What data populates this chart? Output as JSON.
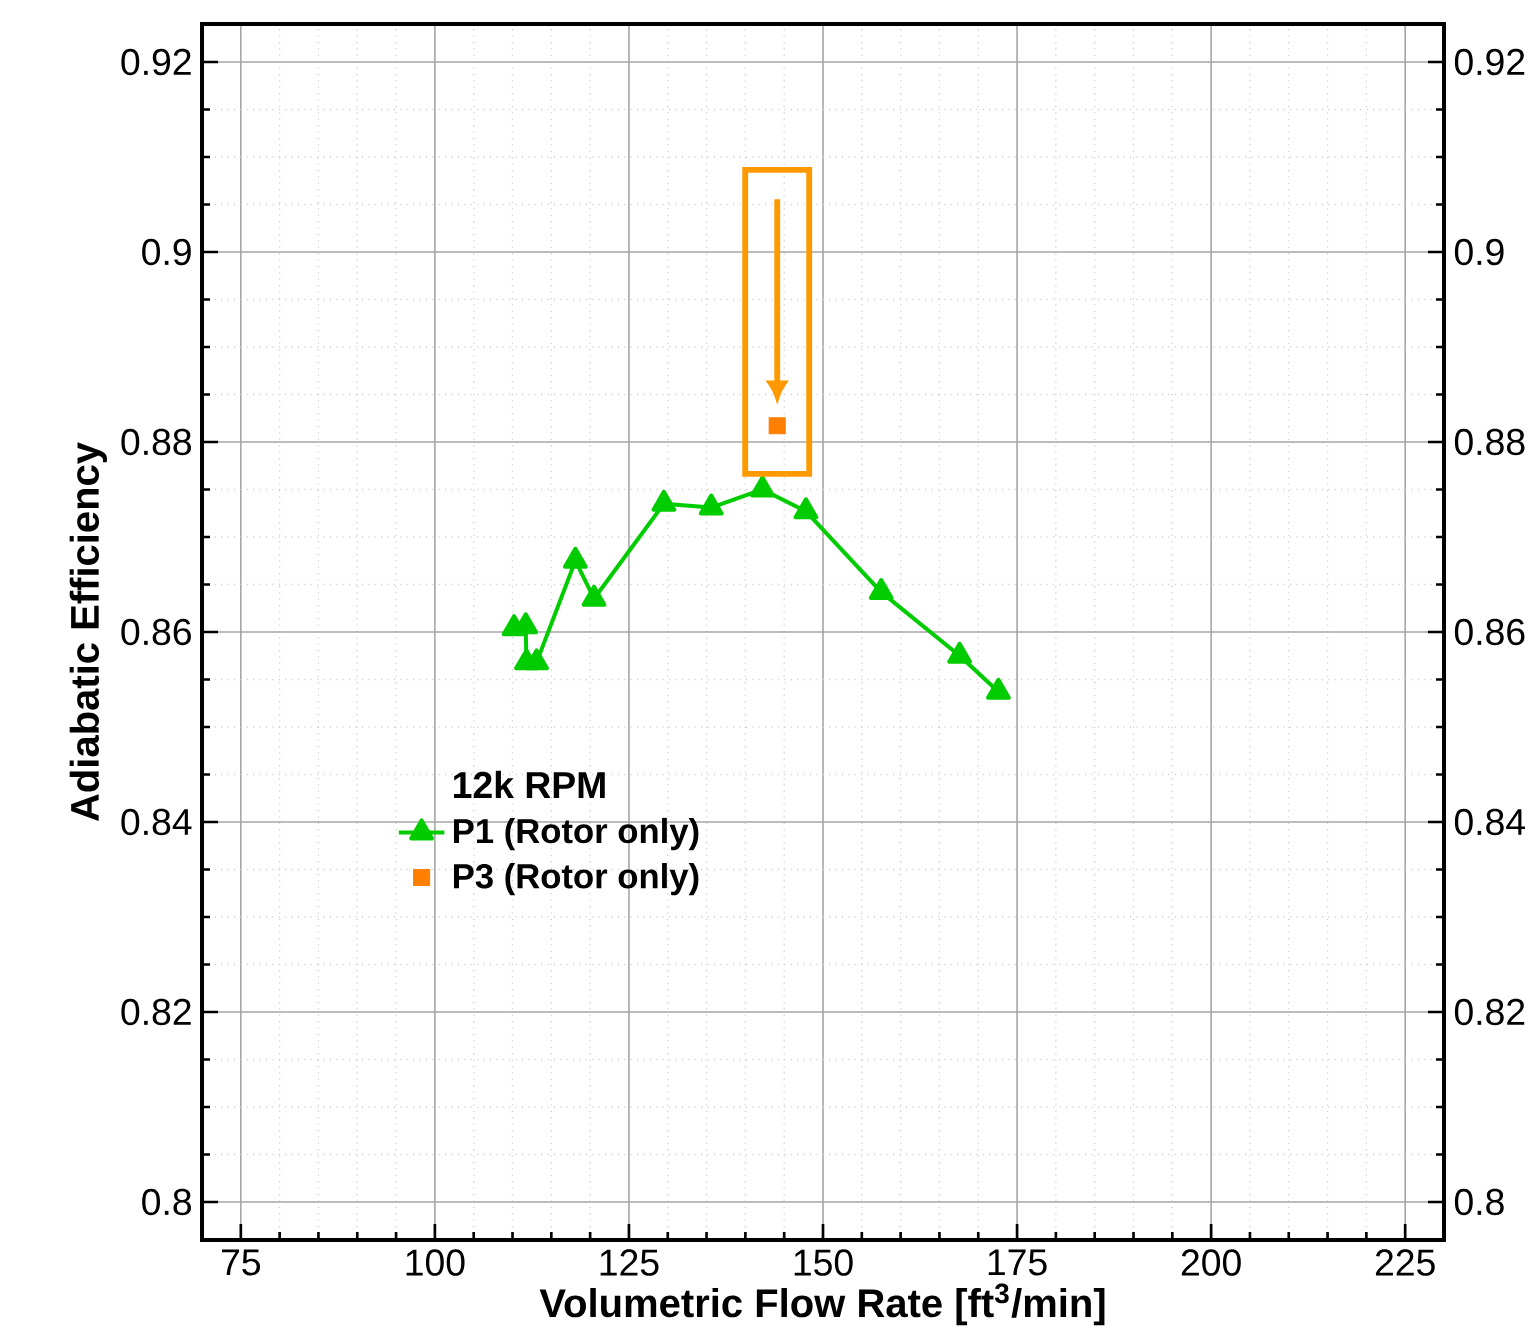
{
  "chart_data": {
    "type": "line",
    "xlabel": "Volumetric Flow Rate [ft$^{3}$/min]",
    "ylabel": "Adiabatic Efficiency",
    "legend_title": "12k RPM",
    "xlim": [
      70,
      230
    ],
    "xticks": [
      75,
      100,
      125,
      150,
      175,
      200,
      225
    ],
    "ylim": [
      0.796,
      0.924
    ],
    "yticks": [
      0.8,
      0.82,
      0.84,
      0.86,
      0.88,
      0.9,
      0.92
    ],
    "y2lim": [
      0.796,
      0.924
    ],
    "y2ticks": [
      0.8,
      0.82,
      0.84,
      0.86,
      0.88,
      0.9,
      0.92
    ],
    "grid": true,
    "legend": "center left",
    "series": [
      {
        "name": "P1 (Rotor only)",
        "marker": "triangle",
        "color": "#00cc00",
        "x": [
          110.2,
          111.7,
          111.8,
          113.1,
          118.1,
          120.5,
          129.5,
          135.6,
          142.2,
          147.8,
          157.5,
          167.6,
          172.6
        ],
        "values": [
          0.8604,
          0.8606,
          0.8568,
          0.8568,
          0.8675,
          0.8635,
          0.8735,
          0.8731,
          0.875,
          0.8727,
          0.8642,
          0.8575,
          0.8537
        ]
      },
      {
        "name": "P3 (Rotor only)",
        "type": "scatter",
        "marker": "square",
        "color": "#ff7f00",
        "x": [
          144.1
        ],
        "values": [
          0.8817
        ]
      }
    ]
  }
}
